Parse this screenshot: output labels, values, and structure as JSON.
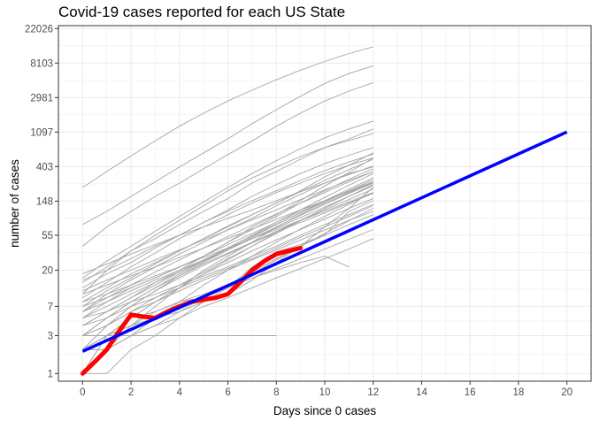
{
  "chart_data": {
    "type": "line",
    "title": "Covid-19 cases reported for each US State",
    "xlabel": "Days since 0 cases",
    "ylabel": "number of cases",
    "xlim": [
      -1,
      21
    ],
    "x_ticks": [
      0,
      2,
      4,
      6,
      8,
      10,
      12,
      14,
      16,
      18,
      20
    ],
    "y_scale": "log",
    "ylim": [
      0.8,
      24000
    ],
    "y_ticks": [
      1,
      3,
      7,
      20,
      55,
      148,
      403,
      1097,
      2981,
      8103,
      22026
    ],
    "grid": true,
    "legend": "none",
    "colors": {
      "states": "#a6a6a6",
      "highlight": "#ff0000",
      "trend": "#0000ff",
      "grid": "#ebebeb",
      "frame": "#333333"
    },
    "series": [
      {
        "x": [
          0,
          1,
          2,
          3,
          4,
          5,
          6,
          7,
          8,
          9,
          10,
          11,
          12
        ],
        "y": [
          1,
          3,
          5,
          6,
          8,
          9,
          12,
          22,
          34,
          42,
          56,
          110,
          150
        ]
      },
      {
        "x": [
          0,
          1,
          2,
          3,
          4,
          5,
          6,
          7,
          8,
          9,
          10,
          11,
          12
        ],
        "y": [
          2,
          3,
          4,
          5,
          6,
          8,
          10,
          15,
          25,
          40,
          70,
          120,
          220
        ]
      },
      {
        "x": [
          0,
          1,
          2,
          3,
          4,
          5,
          6,
          7,
          8,
          9,
          10,
          11,
          12
        ],
        "y": [
          5,
          8,
          12,
          16,
          22,
          30,
          45,
          70,
          100,
          150,
          230,
          340,
          520
        ]
      },
      {
        "x": [
          0,
          1,
          2,
          3,
          4,
          5,
          6,
          7,
          8,
          9,
          10,
          11,
          12
        ],
        "y": [
          10,
          20,
          35,
          50,
          75,
          110,
          160,
          250,
          350,
          500,
          700,
          900,
          1200
        ]
      },
      {
        "x": [
          0,
          1,
          2,
          3,
          4,
          5,
          6,
          7,
          8,
          9,
          10,
          11,
          12
        ],
        "y": [
          8,
          12,
          18,
          25,
          35,
          50,
          70,
          100,
          140,
          200,
          300,
          420,
          600
        ]
      },
      {
        "x": [
          0,
          1,
          2,
          3,
          4,
          5,
          6,
          7,
          8,
          9,
          10,
          11,
          12
        ],
        "y": [
          3,
          4,
          6,
          9,
          13,
          19,
          28,
          40,
          60,
          85,
          120,
          170,
          240
        ]
      },
      {
        "x": [
          0,
          1,
          2,
          3,
          4,
          5,
          6,
          7,
          8,
          9,
          10,
          11,
          12
        ],
        "y": [
          15,
          20,
          28,
          40,
          55,
          80,
          110,
          150,
          200,
          270,
          360,
          460,
          580
        ]
      },
      {
        "x": [
          0,
          1,
          2,
          3,
          4,
          5,
          6,
          7,
          8,
          9,
          10,
          11,
          12
        ],
        "y": [
          6,
          10,
          15,
          22,
          32,
          45,
          65,
          90,
          130,
          180,
          250,
          330,
          400
        ]
      },
      {
        "x": [
          0,
          1,
          2,
          3,
          4,
          5,
          6,
          7,
          8,
          9,
          10,
          11,
          12
        ],
        "y": [
          4,
          6,
          9,
          14,
          20,
          30,
          45,
          65,
          95,
          140,
          200,
          280,
          380
        ]
      },
      {
        "x": [
          0,
          1,
          2,
          3,
          4,
          5,
          6,
          7,
          8,
          9,
          10,
          11,
          12
        ],
        "y": [
          12,
          18,
          25,
          38,
          55,
          80,
          115,
          170,
          240,
          330,
          440,
          560,
          700
        ]
      },
      {
        "x": [
          0,
          1,
          2,
          3,
          4,
          5,
          6,
          7,
          8,
          9,
          10,
          11,
          12
        ],
        "y": [
          2,
          2,
          3,
          4,
          6,
          9,
          13,
          19,
          28,
          40,
          55,
          75,
          100
        ]
      },
      {
        "x": [
          0,
          1,
          2,
          3,
          4,
          5,
          6,
          7,
          8,
          9,
          10,
          11,
          12
        ],
        "y": [
          7,
          9,
          12,
          16,
          22,
          30,
          42,
          58,
          80,
          110,
          150,
          200,
          260
        ]
      },
      {
        "x": [
          0,
          1,
          2,
          3,
          4,
          5,
          6,
          7,
          8,
          9,
          10,
          11,
          12
        ],
        "y": [
          1,
          2,
          4,
          7,
          12,
          20,
          30,
          45,
          70,
          100,
          140,
          190,
          250
        ]
      },
      {
        "x": [
          0,
          1,
          2,
          3,
          4,
          5,
          6,
          7,
          8,
          9,
          10,
          11,
          12
        ],
        "y": [
          9,
          14,
          22,
          33,
          50,
          70,
          100,
          140,
          190,
          250,
          330,
          420,
          520
        ]
      },
      {
        "x": [
          0,
          1,
          2,
          3,
          4,
          5,
          6,
          7,
          8,
          9,
          10,
          11,
          12
        ],
        "y": [
          3,
          5,
          8,
          12,
          18,
          26,
          38,
          55,
          80,
          115,
          165,
          235,
          330
        ]
      },
      {
        "x": [
          0,
          1,
          2,
          3,
          4,
          5,
          6,
          7,
          8,
          9,
          10,
          11,
          12
        ],
        "y": [
          18,
          24,
          32,
          42,
          55,
          70,
          90,
          115,
          150,
          195,
          250,
          320,
          410
        ]
      },
      {
        "x": [
          0,
          1,
          2,
          3,
          4,
          5,
          6,
          7,
          8,
          9,
          10,
          11,
          12
        ],
        "y": [
          5,
          6,
          8,
          10,
          13,
          17,
          22,
          30,
          40,
          55,
          75,
          100,
          135
        ]
      },
      {
        "x": [
          0,
          1,
          2,
          3,
          4,
          5,
          6,
          7,
          8,
          9,
          10,
          11,
          12
        ],
        "y": [
          2,
          4,
          7,
          11,
          17,
          25,
          36,
          52,
          75,
          105,
          150,
          210,
          290
        ]
      },
      {
        "x": [
          0,
          1,
          2,
          3,
          4,
          5,
          6,
          7,
          8,
          9,
          10,
          11,
          12
        ],
        "y": [
          11,
          15,
          20,
          27,
          36,
          48,
          64,
          86,
          115,
          155,
          205,
          270,
          350
        ]
      },
      {
        "x": [
          0,
          1,
          2,
          3,
          4,
          5,
          6,
          7,
          8,
          9,
          10,
          11,
          12
        ],
        "y": [
          4,
          5,
          7,
          9,
          12,
          16,
          21,
          28,
          38,
          52,
          70,
          95,
          130
        ]
      },
      {
        "x": [
          0,
          1,
          2,
          3,
          4,
          5,
          6,
          7,
          8,
          9,
          10,
          11,
          12
        ],
        "y": [
          14,
          22,
          35,
          55,
          85,
          130,
          200,
          290,
          400,
          540,
          700,
          860,
          1050
        ]
      },
      {
        "x": [
          0,
          1,
          2,
          3,
          4,
          5,
          6,
          7,
          8,
          9,
          10,
          11,
          12
        ],
        "y": [
          3,
          4,
          6,
          8,
          11,
          15,
          20,
          27,
          36,
          48,
          64,
          85,
          110
        ]
      },
      {
        "x": [
          0,
          1,
          2,
          3,
          4,
          5,
          6,
          7,
          8,
          9,
          10,
          11,
          12
        ],
        "y": [
          1,
          1,
          2,
          3,
          5,
          8,
          12,
          18,
          27,
          40,
          58,
          84,
          120
        ]
      },
      {
        "x": [
          0,
          1,
          2,
          3,
          4,
          5,
          6,
          7,
          8,
          9,
          10,
          11,
          12
        ],
        "y": [
          6,
          8,
          11,
          15,
          20,
          27,
          37,
          50,
          68,
          92,
          125,
          170,
          230
        ]
      },
      {
        "x": [
          0,
          1,
          2,
          3,
          4,
          5,
          6,
          7,
          8,
          9,
          10,
          11,
          12
        ],
        "y": [
          2,
          3,
          5,
          8,
          12,
          18,
          27,
          40,
          58,
          84,
          120,
          170,
          240
        ]
      },
      {
        "x": [
          0,
          1,
          2,
          3,
          4,
          5,
          6,
          7,
          8,
          9,
          10,
          11,
          12
        ],
        "y": [
          8,
          10,
          13,
          17,
          22,
          29,
          38,
          50,
          65,
          85,
          110,
          145,
          190
        ]
      },
      {
        "x": [
          0,
          1,
          2,
          3,
          4,
          5,
          6,
          7,
          8,
          9,
          10,
          11,
          12
        ],
        "y": [
          5,
          7,
          10,
          14,
          19,
          26,
          36,
          50,
          70,
          98,
          135,
          185,
          250
        ]
      },
      {
        "x": [
          0,
          1,
          2,
          3,
          4,
          5,
          6,
          7,
          8,
          9,
          10,
          11,
          12
        ],
        "y": [
          1,
          2,
          3,
          5,
          8,
          13,
          20,
          30,
          45,
          66,
          95,
          135,
          190
        ]
      },
      {
        "x": [
          0,
          1,
          2,
          3,
          4,
          5,
          6,
          7,
          8,
          9,
          10,
          11,
          12
        ],
        "y": [
          3,
          5,
          8,
          12,
          17,
          24,
          33,
          45,
          62,
          85,
          115,
          155,
          210
        ]
      },
      {
        "x": [
          0,
          1,
          2,
          3,
          4,
          5,
          6,
          7,
          8,
          9,
          10,
          11,
          12
        ],
        "y": [
          7,
          11,
          16,
          24,
          35,
          50,
          72,
          100,
          140,
          195,
          270,
          370,
          500
        ]
      },
      {
        "x": [
          0,
          1,
          2,
          3,
          4,
          5,
          6,
          7,
          8,
          9,
          10,
          11,
          12
        ],
        "y": [
          2,
          2,
          3,
          4,
          5,
          7,
          9,
          12,
          16,
          21,
          28,
          37,
          50
        ]
      },
      {
        "x": [
          0,
          1,
          2,
          3,
          4,
          5,
          6,
          7,
          8,
          9,
          10,
          11,
          12
        ],
        "y": [
          4,
          6,
          9,
          13,
          19,
          27,
          38,
          54,
          76,
          105,
          145,
          200,
          275
        ]
      },
      {
        "x": [
          0,
          1,
          2,
          3,
          4,
          5,
          6,
          7,
          8,
          9,
          10,
          11,
          12
        ],
        "y": [
          16,
          26,
          40,
          62,
          95,
          145,
          220,
          330,
          480,
          680,
          930,
          1200,
          1500
        ]
      },
      {
        "x": [
          0,
          1,
          2,
          3,
          4,
          5,
          6,
          7,
          8,
          9,
          10,
          11,
          12
        ],
        "y": [
          1,
          3,
          5,
          8,
          12,
          18,
          25,
          35,
          48,
          65,
          88,
          120,
          160
        ]
      },
      {
        "x": [
          0,
          1,
          2,
          3,
          4,
          5,
          6,
          7,
          8,
          9,
          10,
          11,
          12
        ],
        "y": [
          10,
          13,
          17,
          22,
          29,
          38,
          50,
          66,
          87,
          115,
          150,
          195,
          255
        ]
      },
      {
        "x": [
          0,
          1,
          2,
          3,
          4,
          5,
          6,
          7,
          8,
          9,
          10,
          11,
          12
        ],
        "y": [
          2,
          4,
          7,
          11,
          16,
          23,
          32,
          44,
          60,
          80,
          105,
          140,
          185
        ]
      },
      {
        "x": [
          0,
          1,
          2,
          3,
          4,
          5,
          6,
          7,
          8,
          9,
          10,
          11,
          12
        ],
        "y": [
          6,
          9,
          13,
          19,
          27,
          38,
          53,
          74,
          102,
          140,
          190,
          260,
          350
        ]
      },
      {
        "x": [
          0,
          1,
          2,
          3,
          4,
          5,
          6,
          7,
          8,
          9,
          10,
          11,
          12
        ],
        "y": [
          3,
          3,
          4,
          5,
          7,
          9,
          12,
          16,
          21,
          28,
          37,
          49,
          65
        ]
      },
      {
        "x": [
          0,
          1,
          2,
          3,
          4,
          5,
          6,
          7,
          8,
          9,
          10,
          11
        ],
        "y": [
          2,
          3,
          4,
          6,
          8,
          10,
          13,
          16,
          20,
          25,
          30,
          22
        ]
      },
      {
        "x": [
          0,
          1,
          2,
          3,
          4,
          5,
          6,
          7,
          8
        ],
        "y": [
          3,
          3,
          3,
          3,
          3,
          3,
          3,
          3,
          3
        ]
      },
      {
        "x": [
          0,
          1,
          2,
          3,
          4,
          5,
          6,
          7,
          8,
          9,
          10,
          11,
          12
        ],
        "y": [
          40,
          70,
          110,
          170,
          250,
          380,
          570,
          850,
          1300,
          1900,
          2700,
          3600,
          4600
        ]
      },
      {
        "x": [
          0,
          1,
          2,
          3,
          4,
          5,
          6,
          7,
          8,
          9,
          10,
          11,
          12
        ],
        "y": [
          75,
          110,
          170,
          260,
          400,
          600,
          900,
          1400,
          2100,
          3100,
          4500,
          6000,
          7500
        ]
      },
      {
        "x": [
          0,
          1,
          2,
          3,
          4,
          5,
          6,
          7,
          8,
          9,
          10,
          11,
          12
        ],
        "y": [
          220,
          350,
          550,
          850,
          1300,
          1900,
          2700,
          3700,
          5000,
          6600,
          8500,
          10700,
          13000
        ]
      }
    ],
    "highlight_series": {
      "x": [
        0,
        0.5,
        1,
        1.5,
        2,
        2.5,
        3,
        3.5,
        4,
        4.5,
        5,
        5.5,
        6,
        6.5,
        7,
        7.5,
        8,
        8.5,
        9
      ],
      "y": [
        1,
        1.4,
        2,
        3.4,
        5.5,
        5.2,
        5,
        6,
        7,
        8,
        8.5,
        9,
        10,
        14,
        20,
        26,
        32,
        35,
        38
      ]
    },
    "trend_line": {
      "x": [
        0,
        20
      ],
      "y": [
        1.9,
        1100
      ]
    }
  }
}
